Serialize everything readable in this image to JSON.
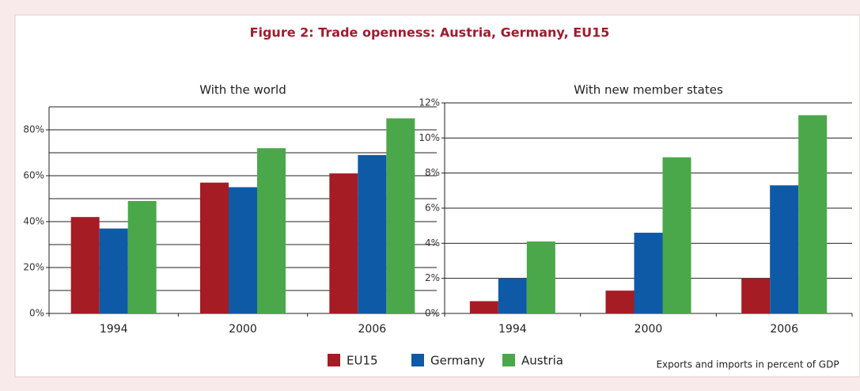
{
  "title": "Figure 2: Trade openness: Austria, Germany, EU15",
  "note": "Exports and imports in percent of GDP",
  "chart_data": [
    {
      "type": "bar",
      "title": "With the world",
      "categories": [
        "1994",
        "2000",
        "2006"
      ],
      "series": [
        {
          "name": "EU15",
          "color": "#a51c24",
          "values": [
            42,
            57,
            61
          ]
        },
        {
          "name": "Germany",
          "color": "#0e5aa7",
          "values": [
            37,
            55,
            69
          ]
        },
        {
          "name": "Austria",
          "color": "#4aa84a",
          "values": [
            49,
            72,
            85
          ]
        }
      ],
      "ylim": [
        0,
        90
      ],
      "yticks": [
        {
          "value": 0,
          "label": "0%"
        },
        {
          "value": 20,
          "label": "20%"
        },
        {
          "value": 40,
          "label": "40%"
        },
        {
          "value": 60,
          "label": "60%"
        },
        {
          "value": 80,
          "label": "80%"
        }
      ],
      "yminor": [
        10,
        30,
        50,
        70,
        90
      ],
      "grid": true
    },
    {
      "type": "bar",
      "title": "With new member states",
      "categories": [
        "1994",
        "2000",
        "2006"
      ],
      "series": [
        {
          "name": "EU15",
          "color": "#a51c24",
          "values": [
            0.7,
            1.3,
            2.0
          ]
        },
        {
          "name": "Germany",
          "color": "#0e5aa7",
          "values": [
            2.0,
            4.6,
            7.3
          ]
        },
        {
          "name": "Austria",
          "color": "#4aa84a",
          "values": [
            4.1,
            8.9,
            11.3
          ]
        }
      ],
      "ylim": [
        0,
        12
      ],
      "yticks": [
        {
          "value": 0,
          "label": "0%"
        },
        {
          "value": 2,
          "label": "2%"
        },
        {
          "value": 4,
          "label": "4%"
        },
        {
          "value": 6,
          "label": "6%"
        },
        {
          "value": 8,
          "label": "8%"
        },
        {
          "value": 10,
          "label": "10%"
        },
        {
          "value": 12,
          "label": "12%"
        }
      ],
      "yminor": [],
      "grid": true
    }
  ]
}
